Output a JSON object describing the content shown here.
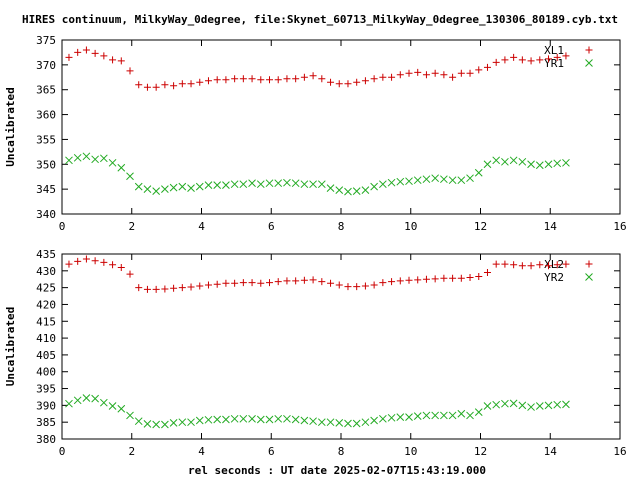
{
  "title": "HIRES continuum, MilkyWay_0degree, file:Skynet_60713_MilkyWay_0degree_130306_80189.cyb.txt",
  "xlabel": "rel seconds : UT date 2025-02-07T15:43:19.000",
  "colors": {
    "series1": "#cc0000",
    "series2": "#22aa22",
    "axis": "#000000"
  },
  "chart_data": [
    {
      "type": "scatter",
      "ylabel": "Uncalibrated",
      "xlim": [
        0,
        16
      ],
      "ylim": [
        340,
        375
      ],
      "xticks": [
        0,
        2,
        4,
        6,
        8,
        10,
        12,
        14,
        16
      ],
      "yticks": [
        340,
        345,
        350,
        355,
        360,
        365,
        370,
        375
      ],
      "legend_position": "top-right",
      "x": [
        0.2,
        0.45,
        0.7,
        0.95,
        1.2,
        1.45,
        1.7,
        1.95,
        2.2,
        2.45,
        2.7,
        2.95,
        3.2,
        3.45,
        3.7,
        3.95,
        4.2,
        4.45,
        4.7,
        4.95,
        5.2,
        5.45,
        5.7,
        5.95,
        6.2,
        6.45,
        6.7,
        6.95,
        7.2,
        7.45,
        7.7,
        7.95,
        8.2,
        8.45,
        8.7,
        8.95,
        9.2,
        9.45,
        9.7,
        9.95,
        10.2,
        10.45,
        10.7,
        10.95,
        11.2,
        11.45,
        11.7,
        11.95,
        12.2,
        12.45,
        12.7,
        12.95,
        13.2,
        13.45,
        13.7,
        13.95,
        14.2,
        14.45
      ],
      "series": [
        {
          "name": "XL1",
          "marker": "+",
          "values": [
            371.5,
            372.5,
            373.0,
            372.3,
            371.8,
            371.0,
            370.8,
            368.8,
            366.0,
            365.5,
            365.5,
            366.0,
            365.8,
            366.2,
            366.2,
            366.5,
            366.8,
            367.0,
            367.0,
            367.2,
            367.2,
            367.2,
            367.0,
            367.0,
            367.0,
            367.2,
            367.2,
            367.5,
            367.8,
            367.2,
            366.5,
            366.2,
            366.2,
            366.5,
            366.8,
            367.2,
            367.5,
            367.5,
            368.0,
            368.3,
            368.5,
            368.0,
            368.3,
            368.0,
            367.5,
            368.3,
            368.3,
            369.0,
            369.5,
            370.5,
            371.0,
            371.5,
            371.0,
            370.8,
            371.0,
            371.2,
            371.5,
            371.8
          ]
        },
        {
          "name": "YR1",
          "marker": "x",
          "values": [
            350.8,
            351.3,
            351.6,
            351.0,
            351.2,
            350.3,
            349.3,
            347.6,
            345.5,
            345.0,
            344.6,
            345.0,
            345.3,
            345.5,
            345.2,
            345.5,
            345.8,
            345.8,
            345.8,
            346.0,
            346.0,
            346.2,
            346.0,
            346.2,
            346.2,
            346.3,
            346.2,
            346.0,
            346.0,
            346.0,
            345.2,
            344.8,
            344.5,
            344.6,
            344.8,
            345.5,
            346.0,
            346.3,
            346.5,
            346.6,
            346.8,
            347.0,
            347.2,
            347.0,
            346.8,
            346.8,
            347.2,
            348.3,
            350.0,
            350.8,
            350.5,
            350.8,
            350.5,
            350.0,
            349.8,
            350.0,
            350.2,
            350.3
          ]
        }
      ]
    },
    {
      "type": "scatter",
      "ylabel": "Uncalibrated",
      "xlim": [
        0,
        16
      ],
      "ylim": [
        380,
        435
      ],
      "xticks": [
        0,
        2,
        4,
        6,
        8,
        10,
        12,
        14,
        16
      ],
      "yticks": [
        380,
        385,
        390,
        395,
        400,
        405,
        410,
        415,
        420,
        425,
        430,
        435
      ],
      "legend_position": "top-right",
      "x": [
        0.2,
        0.45,
        0.7,
        0.95,
        1.2,
        1.45,
        1.7,
        1.95,
        2.2,
        2.45,
        2.7,
        2.95,
        3.2,
        3.45,
        3.7,
        3.95,
        4.2,
        4.45,
        4.7,
        4.95,
        5.2,
        5.45,
        5.7,
        5.95,
        6.2,
        6.45,
        6.7,
        6.95,
        7.2,
        7.45,
        7.7,
        7.95,
        8.2,
        8.45,
        8.7,
        8.95,
        9.2,
        9.45,
        9.7,
        9.95,
        10.2,
        10.45,
        10.7,
        10.95,
        11.2,
        11.45,
        11.7,
        11.95,
        12.2,
        12.45,
        12.7,
        12.95,
        13.2,
        13.45,
        13.7,
        13.95,
        14.2,
        14.45
      ],
      "series": [
        {
          "name": "XL2",
          "marker": "+",
          "values": [
            432.0,
            432.8,
            433.5,
            433.0,
            432.5,
            431.8,
            431.0,
            429.0,
            425.0,
            424.5,
            424.5,
            424.6,
            424.8,
            425.0,
            425.2,
            425.5,
            425.8,
            426.0,
            426.3,
            426.3,
            426.5,
            426.5,
            426.3,
            426.5,
            426.8,
            427.0,
            427.0,
            427.2,
            427.3,
            426.8,
            426.3,
            425.8,
            425.3,
            425.3,
            425.5,
            425.8,
            426.5,
            426.8,
            427.0,
            427.2,
            427.3,
            427.5,
            427.6,
            427.8,
            427.8,
            427.8,
            428.0,
            428.3,
            429.5,
            432.0,
            432.0,
            431.8,
            431.5,
            431.5,
            431.8,
            431.5,
            431.8,
            432.0
          ]
        },
        {
          "name": "YR2",
          "marker": "x",
          "values": [
            390.5,
            391.5,
            392.2,
            392.0,
            390.8,
            389.8,
            389.0,
            387.0,
            385.3,
            384.5,
            384.3,
            384.3,
            384.8,
            385.0,
            385.0,
            385.5,
            385.7,
            385.8,
            385.8,
            386.0,
            386.0,
            386.0,
            385.8,
            385.8,
            386.0,
            386.0,
            385.8,
            385.5,
            385.3,
            385.0,
            385.0,
            384.8,
            384.6,
            384.6,
            385.0,
            385.5,
            386.0,
            386.3,
            386.5,
            386.5,
            386.8,
            387.0,
            387.0,
            387.0,
            387.0,
            387.5,
            387.0,
            388.0,
            389.8,
            390.2,
            390.5,
            390.6,
            390.0,
            389.5,
            389.8,
            390.0,
            390.2,
            390.3
          ]
        }
      ]
    }
  ]
}
